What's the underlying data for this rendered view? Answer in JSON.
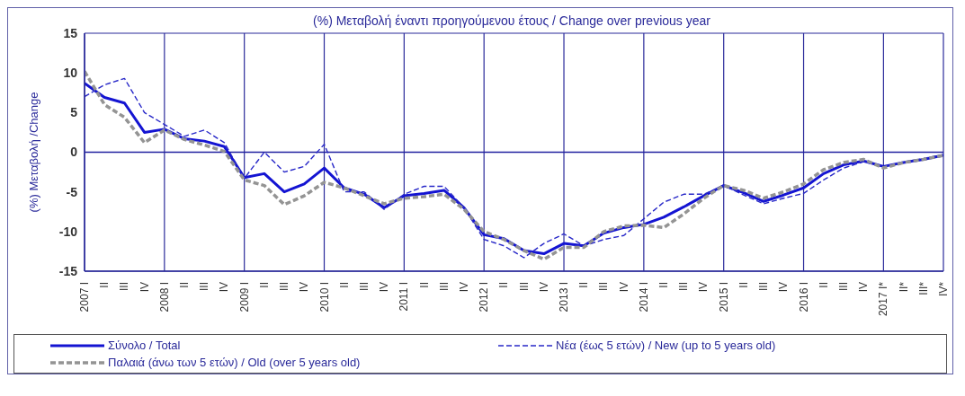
{
  "chart_data": {
    "type": "line",
    "title": "(%) Μεταβολή έναντι προηγούμενου έτους / Change over previous year",
    "ylabel": "(%) Μεταβολή /Change",
    "categories": [
      "2007 I",
      "II",
      "III",
      "IV",
      "2008 I",
      "II",
      "III",
      "IV",
      "2009 I",
      "II",
      "III",
      "IV",
      "2010 I",
      "II",
      "III",
      "IV",
      "2011 I",
      "II",
      "III",
      "IV",
      "2012 I",
      "II",
      "III",
      "IV",
      "2013 I",
      "II",
      "III",
      "IV",
      "2014 I",
      "II",
      "III",
      "IV",
      "2015 I",
      "II",
      "III",
      "IV",
      "2016 I",
      "II",
      "III",
      "IV",
      "2017 I*",
      "II*",
      "III*",
      "IV*"
    ],
    "series": [
      {
        "name": "Σύνολο / Total",
        "color": "#1414d2",
        "line_style": "solid",
        "values": [
          8.7,
          6.9,
          6.2,
          2.5,
          2.9,
          1.7,
          1.4,
          0.7,
          -3.2,
          -2.7,
          -5,
          -4,
          -2,
          -4.5,
          -5.3,
          -7,
          -5.5,
          -5.2,
          -4.8,
          -7,
          -10.4,
          -10.9,
          -12.4,
          -12.8,
          -11.5,
          -11.8,
          -10.2,
          -9.5,
          -9.1,
          -8.2,
          -6.9,
          -5.5,
          -4.2,
          -5.1,
          -6.2,
          -5.4,
          -4.5,
          -2.7,
          -1.6,
          -1.1,
          -1.8,
          -1.3,
          -0.9,
          -0.4
        ]
      },
      {
        "name": "Νέα (έως 5 ετών) / New (up to 5 years old)",
        "color": "#2828c8",
        "line_style": "dashed",
        "values": [
          7,
          8.5,
          9.3,
          5,
          3.5,
          2,
          2.8,
          1.2,
          -3.3,
          0,
          -2.5,
          -1.8,
          1,
          -5,
          -5,
          -7.2,
          -5.3,
          -4.3,
          -4.3,
          -7,
          -11,
          -11.8,
          -13.3,
          -11.5,
          -10.3,
          -11.8,
          -11,
          -10.5,
          -8.4,
          -6.3,
          -5.3,
          -5.3,
          -4.2,
          -5.4,
          -6.5,
          -5.8,
          -5.2,
          -3.5,
          -2,
          -1.2,
          -1.8,
          -1.3,
          -0.8,
          -0.3
        ]
      },
      {
        "name": "Παλαιά (άνω των 5 ετών) / Old (over 5 years old)",
        "color": "#949494",
        "line_style": "dashed",
        "values": [
          10.2,
          6,
          4.4,
          1.2,
          2.8,
          1.6,
          0.9,
          0.1,
          -3.5,
          -4.2,
          -6.6,
          -5.5,
          -3.8,
          -4.5,
          -5.5,
          -6.5,
          -5.8,
          -5.6,
          -5.3,
          -7.2,
          -10,
          -11,
          -12.4,
          -13.5,
          -12,
          -12,
          -10,
          -9.3,
          -9.2,
          -9.5,
          -7.8,
          -5.8,
          -4.2,
          -4.8,
          -5.8,
          -5,
          -4,
          -2.2,
          -1.3,
          -0.9,
          -2,
          -1.3,
          -0.9,
          -0.4
        ]
      }
    ],
    "ylim": [
      -15,
      15
    ],
    "yticks": [
      -15,
      -10,
      -5,
      0,
      5,
      10,
      15
    ],
    "grid": "x",
    "legend": "bottom",
    "marker": "none",
    "ref_lines": [
      {
        "axis": "y",
        "value": 0,
        "color": "#2020a0"
      }
    ]
  }
}
